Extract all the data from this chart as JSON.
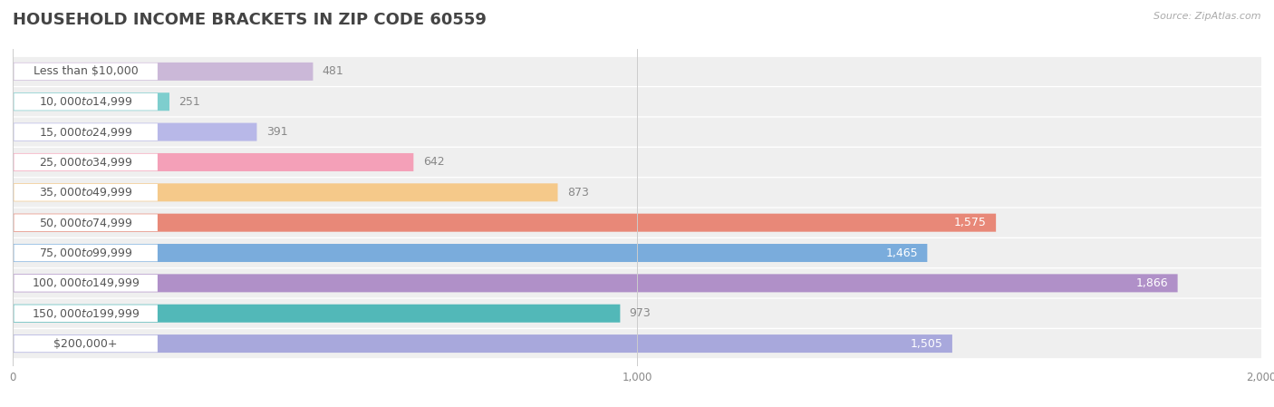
{
  "title": "HOUSEHOLD INCOME BRACKETS IN ZIP CODE 60559",
  "source": "Source: ZipAtlas.com",
  "categories": [
    "Less than $10,000",
    "$10,000 to $14,999",
    "$15,000 to $24,999",
    "$25,000 to $34,999",
    "$35,000 to $49,999",
    "$50,000 to $74,999",
    "$75,000 to $99,999",
    "$100,000 to $149,999",
    "$150,000 to $199,999",
    "$200,000+"
  ],
  "values": [
    481,
    251,
    391,
    642,
    873,
    1575,
    1465,
    1866,
    973,
    1505
  ],
  "bar_colors": [
    "#cbb8d8",
    "#7ecece",
    "#b8b8e8",
    "#f4a0b8",
    "#f5c98a",
    "#e88878",
    "#7aacdc",
    "#b090c8",
    "#52b8b8",
    "#a8a8dc"
  ],
  "xlim": [
    0,
    2000
  ],
  "xticks": [
    0,
    1000,
    2000
  ],
  "background_color": "#ffffff",
  "bar_track_color": "#efefef",
  "label_pill_color": "#ffffff",
  "title_fontsize": 13,
  "label_fontsize": 9,
  "value_fontsize": 9,
  "label_text_color": "#555555",
  "value_color_inside": "#ffffff",
  "value_color_outside": "#888888",
  "value_threshold": 1200
}
